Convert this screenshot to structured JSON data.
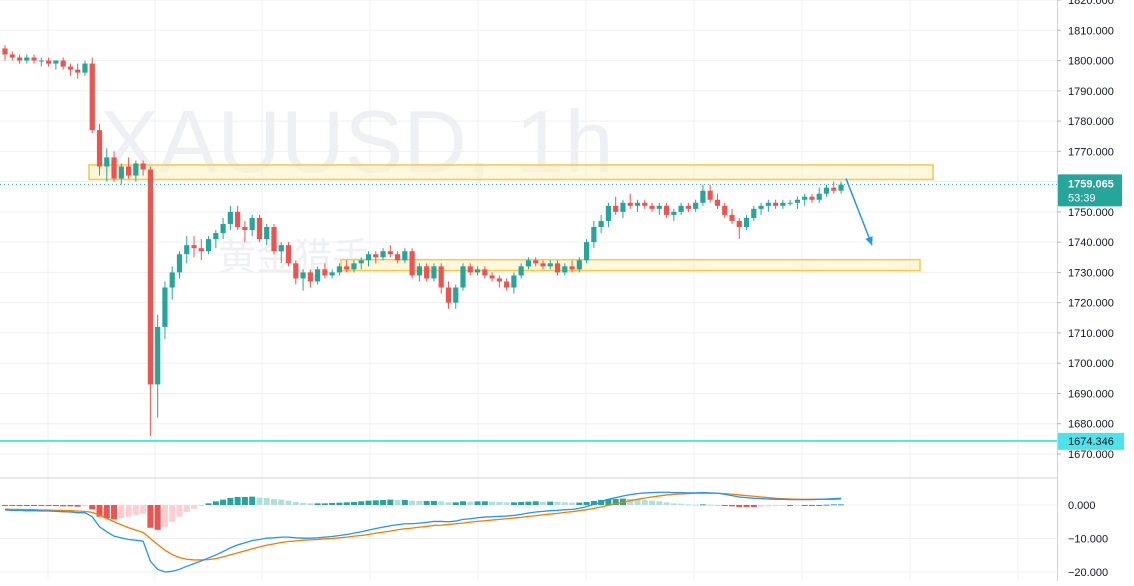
{
  "watermark": {
    "symbol": "XAUUSD, 1h",
    "publisher": "黄金猎手"
  },
  "colors": {
    "up": "#26a69a",
    "down": "#ef5350",
    "grid": "#eef0f3",
    "zone_fill": "#fff3c4",
    "zone_stroke": "#f6c945",
    "level_line": "#4de3ea",
    "price_badge": "#26a69a",
    "macd_line": "#2196f3",
    "signal_line": "#f57c00",
    "hist_up": "#26a69a",
    "hist_up_light": "#b2dfdb",
    "hist_down": "#ef5350",
    "hist_down_light": "#ffcdd2",
    "arrow": "#2196f3"
  },
  "price_axis": {
    "ticks": [
      "1820.000",
      "1810.000",
      "1800.000",
      "1790.000",
      "1780.000",
      "1770.000",
      "1760.000",
      "1750.000",
      "1740.000",
      "1730.000",
      "1720.000",
      "1710.000",
      "1700.000",
      "1690.000",
      "1680.000",
      "1670.000"
    ],
    "last_price": "1759.065",
    "countdown": "53:39",
    "level_label": "1674.346"
  },
  "macd_axis": {
    "ticks": [
      "0.000",
      "−10.000",
      "−20.000"
    ]
  },
  "chart_data": {
    "type": "candlestick",
    "symbol": "XAUUSD",
    "timeframe": "1h",
    "price_range": [
      1664,
      1821
    ],
    "last_price": 1759.065,
    "horizontal_level": 1674.346,
    "resistance_zone": [
      1760.7,
      1765.5
    ],
    "support_zone": [
      1730.6,
      1734.2
    ],
    "forecast_arrow": {
      "from_price": 1761,
      "to_price": 1739
    },
    "macd_range": [
      -22,
      5
    ],
    "candles": [
      [
        1804,
        1805,
        1800,
        1802
      ],
      [
        1802,
        1803,
        1800,
        1801
      ],
      [
        1801,
        1802,
        1799,
        1800
      ],
      [
        1800,
        1802,
        1799,
        1801
      ],
      [
        1801,
        1802,
        1799,
        1800
      ],
      [
        1800,
        1801,
        1798,
        1800
      ],
      [
        1800,
        1801,
        1798,
        1799
      ],
      [
        1799,
        1800,
        1797,
        1800
      ],
      [
        1800,
        1801,
        1797,
        1798
      ],
      [
        1798,
        1799,
        1795,
        1797
      ],
      [
        1797,
        1799,
        1794,
        1796
      ],
      [
        1796,
        1800,
        1795,
        1799
      ],
      [
        1799,
        1801,
        1776,
        1777
      ],
      [
        1777,
        1779,
        1762,
        1765
      ],
      [
        1765,
        1771,
        1760,
        1768
      ],
      [
        1768,
        1770,
        1760,
        1761
      ],
      [
        1761,
        1766,
        1759,
        1765
      ],
      [
        1765,
        1768,
        1761,
        1762
      ],
      [
        1762,
        1767,
        1760,
        1766
      ],
      [
        1766,
        1767,
        1762,
        1764
      ],
      [
        1764,
        1765,
        1676,
        1693
      ],
      [
        1693,
        1716,
        1682,
        1712
      ],
      [
        1712,
        1727,
        1708,
        1725
      ],
      [
        1725,
        1732,
        1721,
        1730
      ],
      [
        1730,
        1737,
        1728,
        1736
      ],
      [
        1736,
        1742,
        1733,
        1739
      ],
      [
        1739,
        1742,
        1735,
        1738
      ],
      [
        1738,
        1741,
        1734,
        1737
      ],
      [
        1737,
        1742,
        1736,
        1741
      ],
      [
        1741,
        1744,
        1738,
        1743
      ],
      [
        1743,
        1748,
        1741,
        1746
      ],
      [
        1746,
        1752,
        1744,
        1750
      ],
      [
        1750,
        1752,
        1744,
        1745
      ],
      [
        1745,
        1747,
        1740,
        1744
      ],
      [
        1744,
        1749,
        1742,
        1748
      ],
      [
        1748,
        1749,
        1740,
        1741
      ],
      [
        1741,
        1746,
        1739,
        1745
      ],
      [
        1745,
        1746,
        1736,
        1737
      ],
      [
        1737,
        1740,
        1733,
        1739
      ],
      [
        1739,
        1740,
        1732,
        1733
      ],
      [
        1733,
        1734,
        1726,
        1728
      ],
      [
        1728,
        1731,
        1724,
        1730
      ],
      [
        1730,
        1731,
        1725,
        1727
      ],
      [
        1727,
        1732,
        1726,
        1731
      ],
      [
        1731,
        1733,
        1728,
        1729
      ],
      [
        1729,
        1731,
        1728,
        1730
      ],
      [
        1730,
        1733,
        1729,
        1732
      ],
      [
        1732,
        1734,
        1730,
        1731
      ],
      [
        1731,
        1734,
        1730,
        1733
      ],
      [
        1733,
        1735,
        1731,
        1734
      ],
      [
        1734,
        1737,
        1732,
        1736
      ],
      [
        1736,
        1737,
        1733,
        1735
      ],
      [
        1735,
        1738,
        1734,
        1737
      ],
      [
        1737,
        1739,
        1735,
        1736
      ],
      [
        1736,
        1737,
        1733,
        1734
      ],
      [
        1734,
        1738,
        1733,
        1737
      ],
      [
        1737,
        1738,
        1728,
        1729
      ],
      [
        1729,
        1733,
        1727,
        1732
      ],
      [
        1732,
        1733,
        1727,
        1728
      ],
      [
        1728,
        1733,
        1727,
        1732
      ],
      [
        1732,
        1733,
        1723,
        1725
      ],
      [
        1725,
        1727,
        1718,
        1720
      ],
      [
        1720,
        1726,
        1718,
        1725
      ],
      [
        1725,
        1733,
        1724,
        1732
      ],
      [
        1732,
        1733,
        1729,
        1730
      ],
      [
        1730,
        1732,
        1729,
        1731
      ],
      [
        1731,
        1732,
        1728,
        1729
      ],
      [
        1729,
        1730,
        1727,
        1728
      ],
      [
        1728,
        1729,
        1725,
        1727
      ],
      [
        1727,
        1728,
        1724,
        1725
      ],
      [
        1725,
        1730,
        1723,
        1729
      ],
      [
        1729,
        1733,
        1728,
        1732
      ],
      [
        1732,
        1735,
        1731,
        1734
      ],
      [
        1734,
        1735,
        1732,
        1733
      ],
      [
        1733,
        1734,
        1731,
        1732
      ],
      [
        1732,
        1734,
        1731,
        1733
      ],
      [
        1733,
        1734,
        1729,
        1730
      ],
      [
        1730,
        1733,
        1729,
        1732
      ],
      [
        1732,
        1734,
        1730,
        1731
      ],
      [
        1731,
        1735,
        1730,
        1734
      ],
      [
        1734,
        1741,
        1733,
        1740
      ],
      [
        1740,
        1747,
        1738,
        1745
      ],
      [
        1745,
        1749,
        1743,
        1747
      ],
      [
        1747,
        1753,
        1745,
        1752
      ],
      [
        1752,
        1755,
        1749,
        1750
      ],
      [
        1750,
        1754,
        1748,
        1753
      ],
      [
        1753,
        1756,
        1751,
        1752
      ],
      [
        1752,
        1754,
        1750,
        1753
      ],
      [
        1753,
        1754,
        1751,
        1752
      ],
      [
        1752,
        1753,
        1750,
        1751
      ],
      [
        1751,
        1753,
        1749,
        1752
      ],
      [
        1752,
        1753,
        1748,
        1749
      ],
      [
        1749,
        1751,
        1747,
        1750
      ],
      [
        1750,
        1753,
        1749,
        1752
      ],
      [
        1752,
        1753,
        1750,
        1751
      ],
      [
        1751,
        1754,
        1750,
        1753
      ],
      [
        1753,
        1759,
        1752,
        1757
      ],
      [
        1757,
        1759,
        1753,
        1754
      ],
      [
        1754,
        1756,
        1751,
        1752
      ],
      [
        1752,
        1753,
        1748,
        1749
      ],
      [
        1749,
        1751,
        1746,
        1747
      ],
      [
        1747,
        1748,
        1741,
        1745
      ],
      [
        1745,
        1749,
        1744,
        1748
      ],
      [
        1748,
        1752,
        1747,
        1751
      ],
      [
        1751,
        1753,
        1749,
        1752
      ],
      [
        1752,
        1754,
        1750,
        1753
      ],
      [
        1753,
        1754,
        1751,
        1752
      ],
      [
        1752,
        1754,
        1751,
        1753
      ],
      [
        1753,
        1754,
        1752,
        1753
      ],
      [
        1753,
        1755,
        1751,
        1754
      ],
      [
        1754,
        1756,
        1752,
        1755
      ],
      [
        1755,
        1756,
        1753,
        1754
      ],
      [
        1754,
        1758,
        1753,
        1756
      ],
      [
        1756,
        1759,
        1755,
        1758
      ],
      [
        1758,
        1760,
        1756,
        1757
      ],
      [
        1757,
        1760,
        1756,
        1759
      ]
    ],
    "macd": {
      "macd_line": [
        -1.5,
        -1.6,
        -1.6,
        -1.7,
        -1.7,
        -1.8,
        -1.8,
        -1.9,
        -2,
        -2.1,
        -2.3,
        -2.3,
        -3.5,
        -6.5,
        -8,
        -9.3,
        -9.8,
        -10.3,
        -10.5,
        -10.8,
        -16.8,
        -19.2,
        -20,
        -19.8,
        -19.2,
        -18.3,
        -17.5,
        -16.7,
        -15.8,
        -14.9,
        -13.9,
        -12.8,
        -11.9,
        -11.3,
        -10.6,
        -10.3,
        -9.9,
        -9.8,
        -9.6,
        -9.6,
        -9.8,
        -9.9,
        -9.9,
        -9.8,
        -9.6,
        -9.4,
        -9.1,
        -8.8,
        -8.4,
        -8,
        -7.5,
        -7,
        -6.6,
        -6.2,
        -5.9,
        -5.6,
        -5.6,
        -5.4,
        -5.2,
        -4.9,
        -4.9,
        -5,
        -4.8,
        -4.3,
        -4.1,
        -3.8,
        -3.6,
        -3.5,
        -3.4,
        -3.3,
        -3.1,
        -2.8,
        -2.4,
        -2.1,
        -1.9,
        -1.7,
        -1.6,
        -1.4,
        -1.3,
        -1,
        -0.5,
        0.2,
        0.9,
        1.7,
        2.2,
        2.7,
        3.1,
        3.4,
        3.6,
        3.7,
        3.8,
        3.8,
        3.7,
        3.7,
        3.6,
        3.6,
        3.7,
        3.6,
        3.5,
        3.2,
        2.8,
        2.4,
        2.2,
        2,
        1.9,
        1.8,
        1.7,
        1.7,
        1.6,
        1.6,
        1.6,
        1.6,
        1.7,
        1.8,
        1.9,
        2
      ],
      "signal_line": [
        -1.2,
        -1.3,
        -1.3,
        -1.4,
        -1.4,
        -1.5,
        -1.5,
        -1.6,
        -1.6,
        -1.7,
        -1.8,
        -1.9,
        -2.2,
        -3,
        -4,
        -5,
        -5.9,
        -6.8,
        -7.5,
        -8.2,
        -10,
        -11.8,
        -13.5,
        -14.8,
        -15.7,
        -16.2,
        -16.4,
        -16.4,
        -16.3,
        -16,
        -15.5,
        -14.9,
        -14.3,
        -13.7,
        -13.1,
        -12.5,
        -12,
        -11.6,
        -11.2,
        -10.9,
        -10.7,
        -10.5,
        -10.4,
        -10.3,
        -10.1,
        -10,
        -9.8,
        -9.6,
        -9.3,
        -9.1,
        -8.8,
        -8.4,
        -8.1,
        -7.8,
        -7.4,
        -7.1,
        -6.9,
        -6.6,
        -6.4,
        -6.1,
        -6,
        -5.8,
        -5.6,
        -5.4,
        -5.1,
        -4.9,
        -4.7,
        -4.5,
        -4.3,
        -4.1,
        -3.9,
        -3.7,
        -3.4,
        -3.2,
        -2.9,
        -2.7,
        -2.5,
        -2.2,
        -2,
        -1.7,
        -1.4,
        -1,
        -0.6,
        -0.1,
        0.4,
        0.8,
        1.3,
        1.7,
        2.1,
        2.4,
        2.7,
        3,
        3.2,
        3.3,
        3.4,
        3.5,
        3.5,
        3.5,
        3.5,
        3.4,
        3.2,
        3,
        2.8,
        2.6,
        2.4,
        2.2,
        2,
        1.9,
        1.8,
        1.7,
        1.7,
        1.7,
        1.7,
        1.7,
        1.7,
        1.8
      ],
      "histogram": [
        -0.3,
        -0.3,
        -0.3,
        -0.3,
        -0.3,
        -0.3,
        -0.3,
        -0.3,
        -0.4,
        -0.4,
        -0.5,
        -0.4,
        -1.3,
        -3.5,
        -4,
        -4.3,
        -3.9,
        -3.5,
        -3,
        -2.6,
        -6.8,
        -7.4,
        -6.5,
        -5,
        -3.5,
        -2.1,
        -1.1,
        -0.3,
        0.5,
        1.1,
        1.6,
        2.1,
        2.4,
        2.4,
        2.5,
        2.2,
        2.1,
        1.8,
        1.6,
        1.3,
        0.9,
        0.6,
        0.5,
        0.5,
        0.5,
        0.6,
        0.7,
        0.8,
        0.9,
        1.1,
        1.3,
        1.4,
        1.5,
        1.6,
        1.5,
        1.5,
        1.3,
        1.2,
        1.2,
        1.2,
        1.1,
        0.8,
        0.8,
        1.1,
        1,
        1.1,
        1.1,
        1,
        0.9,
        0.8,
        0.8,
        0.9,
        1,
        1.1,
        1,
        1,
        0.9,
        0.8,
        0.7,
        0.7,
        0.9,
        1.2,
        1.5,
        1.8,
        1.8,
        1.9,
        1.8,
        1.7,
        1.5,
        1.3,
        1.1,
        0.8,
        0.5,
        0.4,
        0.2,
        0.1,
        0.2,
        0.1,
        0,
        -0.2,
        -0.4,
        -0.6,
        -0.6,
        -0.6,
        -0.5,
        -0.4,
        -0.3,
        -0.2,
        -0.2,
        -0.1,
        -0.1,
        -0.1,
        0,
        0.1,
        0.2,
        0.2
      ]
    }
  }
}
